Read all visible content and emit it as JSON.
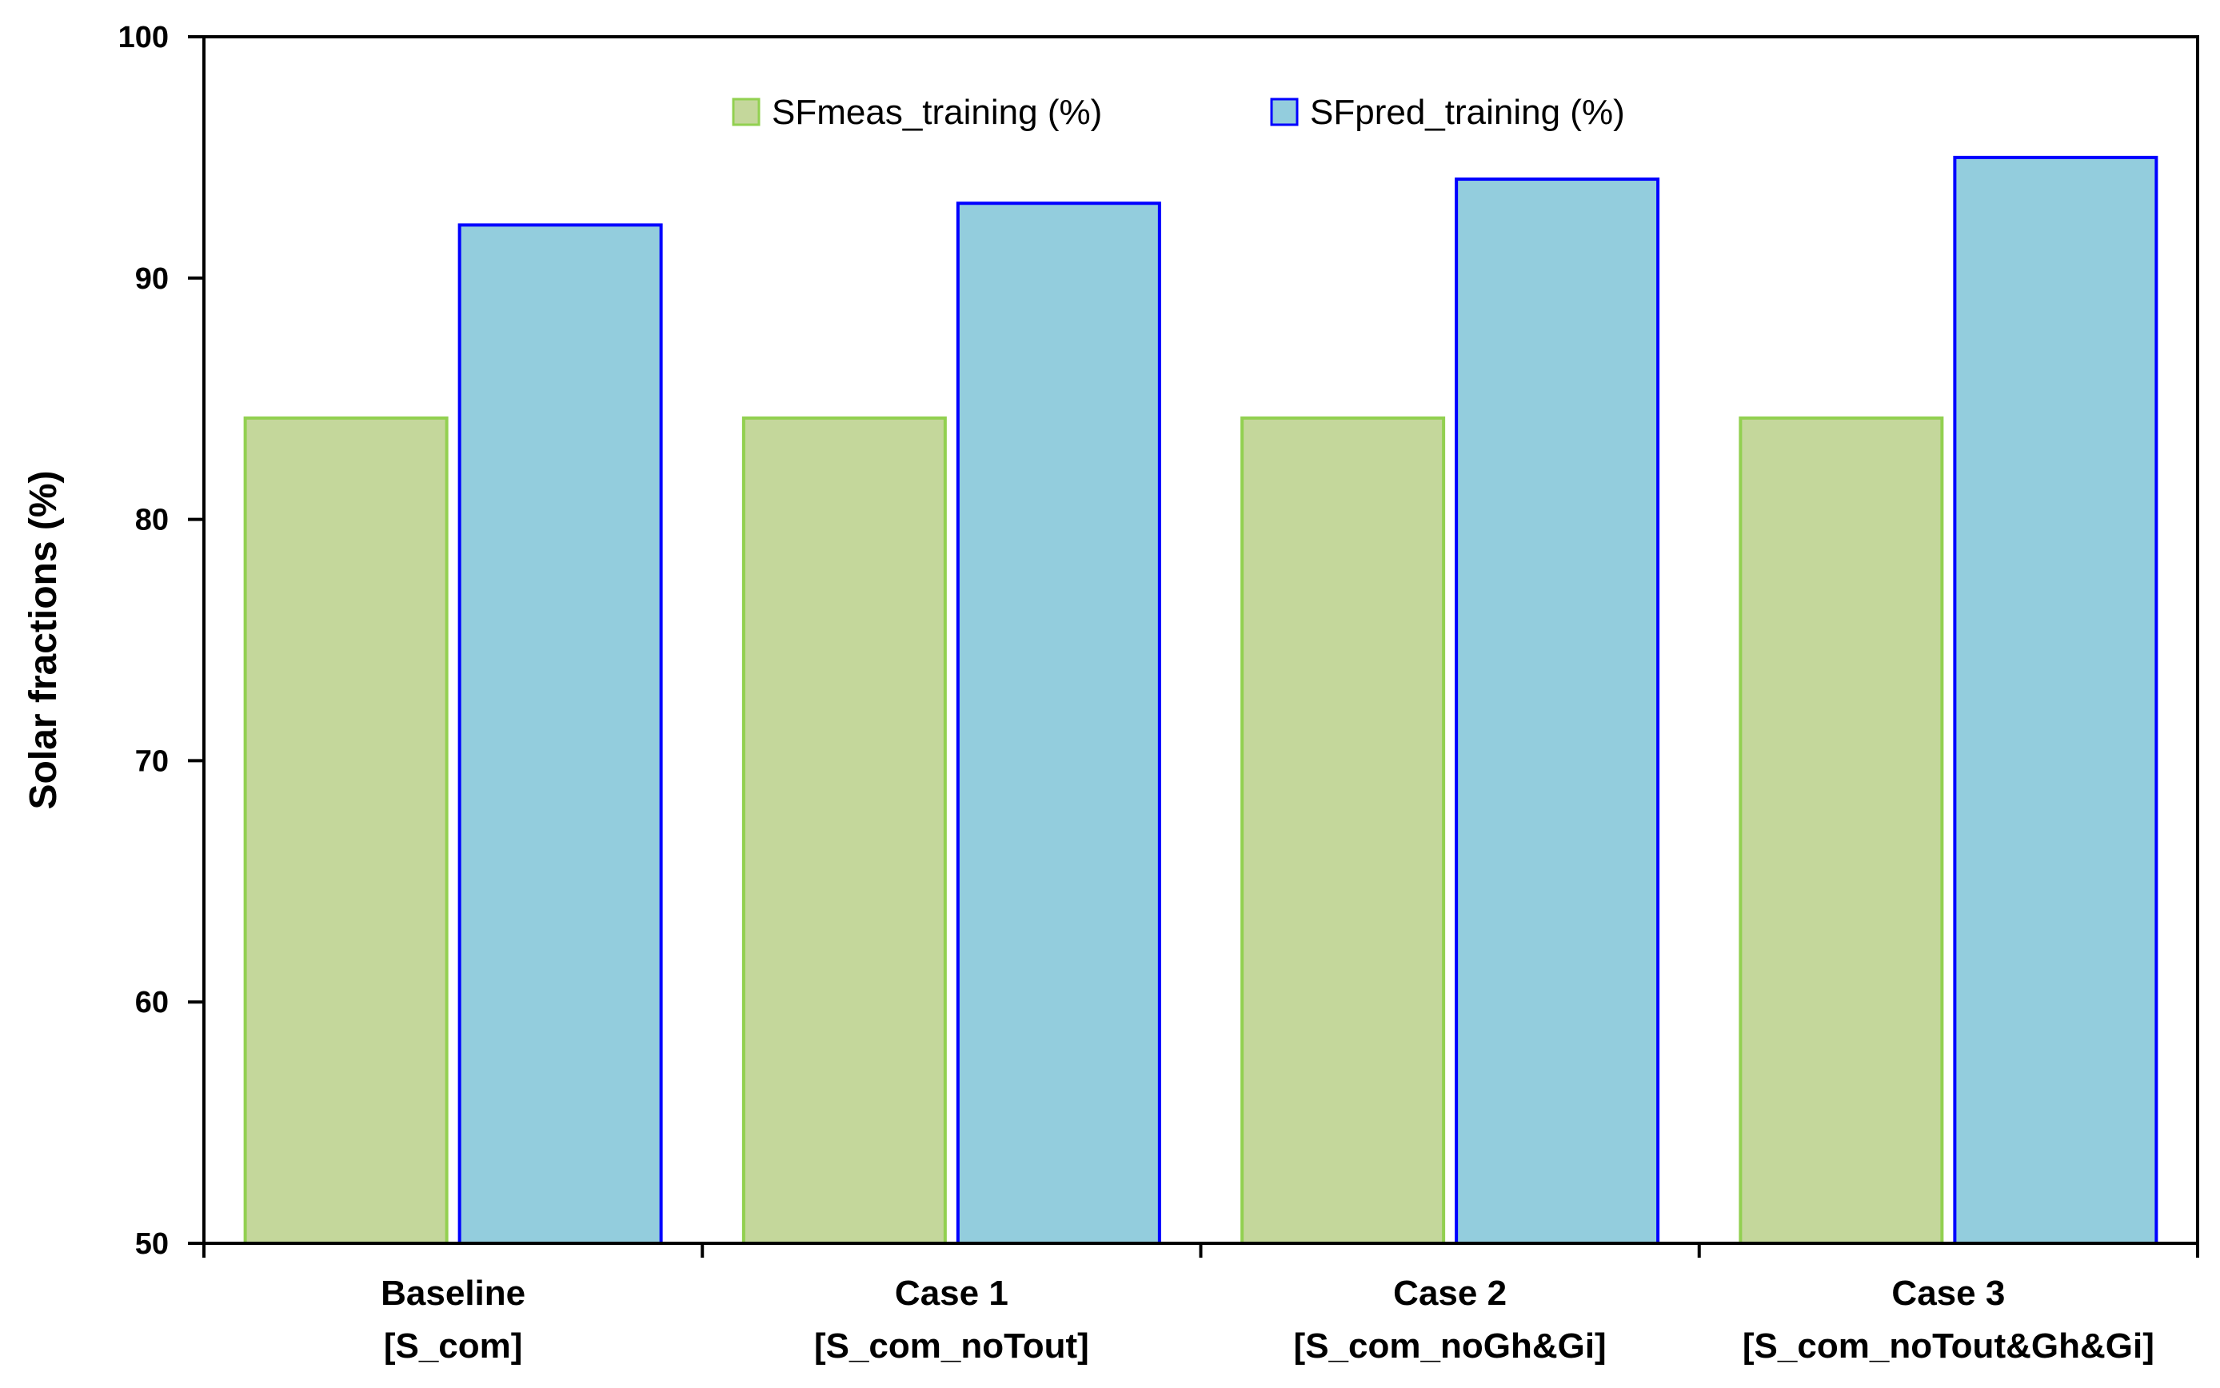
{
  "chart_data": {
    "type": "bar",
    "title": "",
    "xlabel": "",
    "ylabel": "Solar fractions (%)",
    "ylim": [
      50,
      100
    ],
    "yticks": [
      50,
      60,
      70,
      80,
      90,
      100
    ],
    "grid": false,
    "legend_position": "top-center",
    "categories": [
      {
        "line1": "Baseline",
        "line2": "[S_com]"
      },
      {
        "line1": "Case 1",
        "line2": "[S_com_noTout]"
      },
      {
        "line1": "Case 2",
        "line2": "[S_com_noGh&Gi]"
      },
      {
        "line1": "Case 3",
        "line2": "[S_com_noTout&Gh&Gi]"
      }
    ],
    "series": [
      {
        "name": "SFmeas_training (%)",
        "values": [
          84.2,
          84.2,
          84.2,
          84.2
        ],
        "fill": "#c4d79b",
        "stroke": "#92d050"
      },
      {
        "name": "SFpred_training (%)",
        "values": [
          92.2,
          93.1,
          94.1,
          95.0
        ],
        "fill": "#93cddd",
        "stroke": "#0000ff"
      }
    ]
  }
}
